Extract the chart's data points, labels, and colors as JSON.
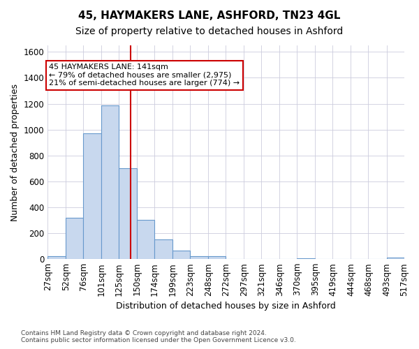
{
  "title_line1": "45, HAYMAKERS LANE, ASHFORD, TN23 4GL",
  "title_line2": "Size of property relative to detached houses in Ashford",
  "xlabel": "Distribution of detached houses by size in Ashford",
  "ylabel": "Number of detached properties",
  "footnote": "Contains HM Land Registry data © Crown copyright and database right 2024.\nContains public sector information licensed under the Open Government Licence v3.0.",
  "bar_edges": [
    27,
    52,
    76,
    101,
    125,
    150,
    174,
    199,
    223,
    248,
    272,
    297,
    321,
    346,
    370,
    395,
    419,
    444,
    468,
    493,
    517
  ],
  "bar_values": [
    25,
    320,
    970,
    1185,
    700,
    305,
    150,
    65,
    25,
    20,
    0,
    0,
    0,
    0,
    5,
    0,
    0,
    0,
    0,
    10
  ],
  "bar_color": "#c8d8ee",
  "bar_edgecolor": "#6899cc",
  "property_size": 141,
  "vline_color": "#cc0000",
  "annotation_line1": "45 HAYMAKERS LANE: 141sqm",
  "annotation_line2": "← 79% of detached houses are smaller (2,975)",
  "annotation_line3": "21% of semi-detached houses are larger (774) →",
  "annotation_box_facecolor": "#ffffff",
  "annotation_box_edgecolor": "#cc0000",
  "ylim": [
    0,
    1650
  ],
  "yticks": [
    0,
    200,
    400,
    600,
    800,
    1000,
    1200,
    1400,
    1600
  ],
  "background_color": "#ffffff",
  "plot_background": "#ffffff",
  "grid_color": "#ccccdd",
  "title1_fontsize": 11,
  "title2_fontsize": 10,
  "axis_label_fontsize": 9,
  "tick_fontsize": 8.5,
  "footnote_fontsize": 6.5
}
